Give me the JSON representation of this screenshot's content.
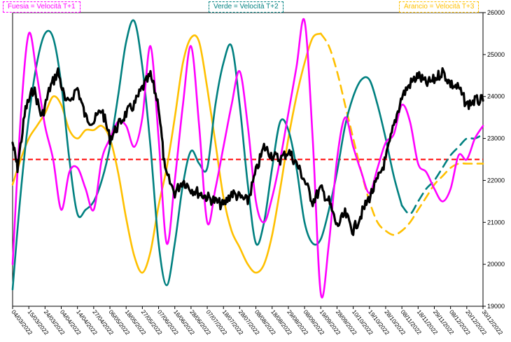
{
  "chart_data": {
    "type": "line",
    "y_axis_position": "right",
    "ylim": [
      19000,
      26000
    ],
    "y_ticks": [
      "19000",
      "20000",
      "21000",
      "22000",
      "23000",
      "24000",
      "25000",
      "26000"
    ],
    "x_ticks": [
      "04/03/2022",
      "15/03/2022",
      "24/03/2022",
      "04/04/2022",
      "14/04/2022",
      "27/04/2022",
      "06/05/2022",
      "18/05/2022",
      "27/05/2022",
      "07/06/2022",
      "16/06/2022",
      "28/06/2022",
      "07/07/2022",
      "18/07/2022",
      "28/07/2022",
      "08/08/2022",
      "18/08/2022",
      "29/08/2022",
      "08/09/2022",
      "19/09/2022",
      "28/09/2022",
      "10/10/2022",
      "19/10/2022",
      "28/10/2022",
      "08/11/2022",
      "18/11/2022",
      "29/11/2022",
      "08/12/2022",
      "20/12/2022",
      "30/12/2022"
    ],
    "reference_line": {
      "value": 22500,
      "color": "#ff0000",
      "style": "dashed"
    },
    "legend": [
      {
        "label": "Fuesia = Velocità T+1",
        "color": "#ff00ff"
      },
      {
        "label": "Verde = Velocità T+2",
        "color": "#008080"
      },
      {
        "label": "Arancio = Velocità T+3",
        "color": "#ffc000"
      }
    ],
    "series": [
      {
        "key": "price",
        "color": "#000000",
        "width": 3.2,
        "points": [
          [
            0,
            22900
          ],
          [
            0.3,
            22300
          ],
          [
            0.8,
            23700
          ],
          [
            1.3,
            24200
          ],
          [
            1.8,
            23500
          ],
          [
            2.3,
            24200
          ],
          [
            2.8,
            24600
          ],
          [
            3.3,
            23800
          ],
          [
            4,
            24200
          ],
          [
            4.5,
            23500
          ],
          [
            5,
            23400
          ],
          [
            5.5,
            23700
          ],
          [
            6,
            23000
          ],
          [
            6.5,
            23300
          ],
          [
            7,
            23600
          ],
          [
            7.5,
            23800
          ],
          [
            8,
            24200
          ],
          [
            8.5,
            24500
          ],
          [
            9,
            23800
          ],
          [
            9.4,
            22200
          ],
          [
            10,
            21700
          ],
          [
            10.5,
            22000
          ],
          [
            11,
            21800
          ],
          [
            11.5,
            21700
          ],
          [
            12,
            21600
          ],
          [
            12.5,
            21500
          ],
          [
            13,
            21400
          ],
          [
            13.5,
            21700
          ],
          [
            14,
            21600
          ],
          [
            14.5,
            21500
          ],
          [
            15,
            22200
          ],
          [
            15.5,
            22800
          ],
          [
            16,
            22600
          ],
          [
            16.5,
            22500
          ],
          [
            17,
            22700
          ],
          [
            17.5,
            22400
          ],
          [
            18,
            22000
          ],
          [
            18.5,
            21500
          ],
          [
            19,
            21800
          ],
          [
            19.5,
            21500
          ],
          [
            20,
            20900
          ],
          [
            20.5,
            21200
          ],
          [
            21,
            20800
          ],
          [
            21.5,
            21200
          ],
          [
            22,
            21600
          ],
          [
            22.5,
            22000
          ],
          [
            23,
            22500
          ],
          [
            23.5,
            23300
          ],
          [
            24,
            24000
          ],
          [
            24.5,
            24300
          ],
          [
            25,
            24500
          ],
          [
            25.5,
            24300
          ],
          [
            26,
            24400
          ],
          [
            26.5,
            24600
          ],
          [
            27,
            24300
          ],
          [
            27.5,
            24200
          ],
          [
            28,
            23800
          ],
          [
            28.5,
            23900
          ],
          [
            29,
            23900
          ]
        ]
      },
      {
        "key": "t1",
        "color": "#ff00ff",
        "width": 2.6,
        "points": [
          [
            0,
            20000
          ],
          [
            0.5,
            23500
          ],
          [
            1,
            25500
          ],
          [
            1.5,
            24500
          ],
          [
            2,
            23300
          ],
          [
            2.5,
            22500
          ],
          [
            3,
            21300
          ],
          [
            3.5,
            22200
          ],
          [
            4,
            22300
          ],
          [
            4.5,
            21800
          ],
          [
            5,
            21300
          ],
          [
            5.5,
            22500
          ],
          [
            6,
            23000
          ],
          [
            6.5,
            23400
          ],
          [
            7,
            23300
          ],
          [
            7.5,
            22800
          ],
          [
            8,
            23500
          ],
          [
            8.5,
            25200
          ],
          [
            9,
            23000
          ],
          [
            9.5,
            20500
          ],
          [
            10,
            22000
          ],
          [
            10.5,
            23800
          ],
          [
            11,
            25200
          ],
          [
            11.5,
            23300
          ],
          [
            12,
            21000
          ],
          [
            12.5,
            21800
          ],
          [
            13,
            22800
          ],
          [
            13.5,
            23800
          ],
          [
            14,
            24600
          ],
          [
            14.5,
            23300
          ],
          [
            15,
            21500
          ],
          [
            15.5,
            21000
          ],
          [
            16,
            21600
          ],
          [
            16.5,
            22500
          ],
          [
            17,
            23600
          ],
          [
            17.5,
            24700
          ],
          [
            18,
            25800
          ],
          [
            18.5,
            23000
          ],
          [
            19,
            19300
          ],
          [
            19.5,
            20500
          ],
          [
            20,
            22500
          ],
          [
            20.5,
            23500
          ],
          [
            21,
            22800
          ],
          [
            21.5,
            22200
          ],
          [
            22,
            21700
          ],
          [
            22.5,
            22300
          ],
          [
            23,
            22900
          ],
          [
            23.5,
            23100
          ],
          [
            24,
            23800
          ],
          [
            24.5,
            23400
          ],
          [
            25,
            22400
          ],
          [
            25.5,
            22200
          ],
          [
            26,
            21800
          ],
          [
            26.5,
            21500
          ],
          [
            27,
            21800
          ],
          [
            27.5,
            22600
          ],
          [
            28,
            22500
          ],
          [
            28.5,
            23000
          ],
          [
            29,
            23300
          ]
        ]
      },
      {
        "key": "t2",
        "color": "#008080",
        "width": 2.6,
        "points": [
          [
            0,
            19400
          ],
          [
            0.5,
            21700
          ],
          [
            1,
            23500
          ],
          [
            1.5,
            24800
          ],
          [
            2,
            25500
          ],
          [
            2.5,
            25400
          ],
          [
            3,
            24300
          ],
          [
            3.5,
            22500
          ],
          [
            4,
            21200
          ],
          [
            4.5,
            21300
          ],
          [
            5,
            21500
          ],
          [
            5.5,
            22000
          ],
          [
            6,
            22800
          ],
          [
            6.5,
            24000
          ],
          [
            7,
            25300
          ],
          [
            7.5,
            25800
          ],
          [
            8,
            24700
          ],
          [
            8.5,
            22800
          ],
          [
            9,
            20500
          ],
          [
            9.5,
            19500
          ],
          [
            10,
            20500
          ],
          [
            10.5,
            21900
          ],
          [
            11,
            22700
          ],
          [
            11.5,
            22400
          ],
          [
            12,
            22300
          ],
          [
            12.5,
            23800
          ],
          [
            13,
            24800
          ],
          [
            13.5,
            25200
          ],
          [
            14,
            23800
          ],
          [
            14.5,
            21900
          ],
          [
            15,
            20500
          ],
          [
            15.5,
            21000
          ],
          [
            16,
            22300
          ],
          [
            16.5,
            23400
          ],
          [
            17,
            23200
          ],
          [
            17.5,
            22300
          ],
          [
            18,
            21000
          ],
          [
            18.5,
            20500
          ],
          [
            19,
            20600
          ],
          [
            19.5,
            21300
          ],
          [
            20,
            22200
          ],
          [
            20.5,
            23300
          ],
          [
            21,
            24000
          ],
          [
            21.5,
            24400
          ],
          [
            22,
            24400
          ],
          [
            22.5,
            23800
          ],
          [
            23,
            23000
          ],
          [
            23.5,
            22100
          ],
          [
            24,
            21400
          ],
          [
            24.5,
            21200
          ],
          [
            25,
            21500
          ],
          [
            25.5,
            21800
          ],
          [
            26,
            22000
          ],
          [
            26.5,
            22300
          ],
          [
            27,
            22600
          ],
          [
            27.5,
            22800
          ],
          [
            28,
            23000
          ],
          [
            28.5,
            23000
          ],
          [
            29,
            23100
          ]
        ],
        "dashed_from_index": 48
      },
      {
        "key": "t3",
        "color": "#ffc000",
        "width": 2.6,
        "points": [
          [
            0,
            21900
          ],
          [
            0.5,
            22500
          ],
          [
            1,
            23000
          ],
          [
            1.5,
            23300
          ],
          [
            2,
            23600
          ],
          [
            2.5,
            24000
          ],
          [
            3,
            23800
          ],
          [
            3.5,
            23200
          ],
          [
            4,
            23000
          ],
          [
            4.5,
            23200
          ],
          [
            5,
            23200
          ],
          [
            5.5,
            23300
          ],
          [
            6,
            23000
          ],
          [
            6.5,
            22200
          ],
          [
            7,
            21100
          ],
          [
            7.5,
            20200
          ],
          [
            8,
            19800
          ],
          [
            8.5,
            20300
          ],
          [
            9,
            21400
          ],
          [
            9.5,
            22300
          ],
          [
            10,
            23500
          ],
          [
            10.5,
            24800
          ],
          [
            11,
            25400
          ],
          [
            11.5,
            25300
          ],
          [
            12,
            24200
          ],
          [
            12.5,
            22900
          ],
          [
            13,
            21600
          ],
          [
            13.5,
            20800
          ],
          [
            14,
            20400
          ],
          [
            14.5,
            20000
          ],
          [
            15,
            19800
          ],
          [
            15.5,
            20000
          ],
          [
            16,
            20700
          ],
          [
            16.5,
            21800
          ],
          [
            17,
            23000
          ],
          [
            17.5,
            24000
          ],
          [
            18,
            24800
          ],
          [
            18.5,
            25400
          ],
          [
            19,
            25500
          ],
          [
            19.5,
            25200
          ],
          [
            20,
            24600
          ],
          [
            20.5,
            23800
          ],
          [
            21,
            23000
          ],
          [
            21.5,
            22200
          ],
          [
            22,
            21500
          ],
          [
            22.5,
            21000
          ],
          [
            23,
            20800
          ],
          [
            23.5,
            20700
          ],
          [
            24,
            20800
          ],
          [
            24.5,
            21000
          ],
          [
            25,
            21300
          ],
          [
            25.5,
            21600
          ],
          [
            26,
            21900
          ],
          [
            26.5,
            22100
          ],
          [
            27,
            22300
          ],
          [
            27.5,
            22400
          ],
          [
            28,
            22400
          ],
          [
            28.5,
            22400
          ],
          [
            29,
            22400
          ]
        ],
        "dashed_from_index": 38
      }
    ]
  }
}
